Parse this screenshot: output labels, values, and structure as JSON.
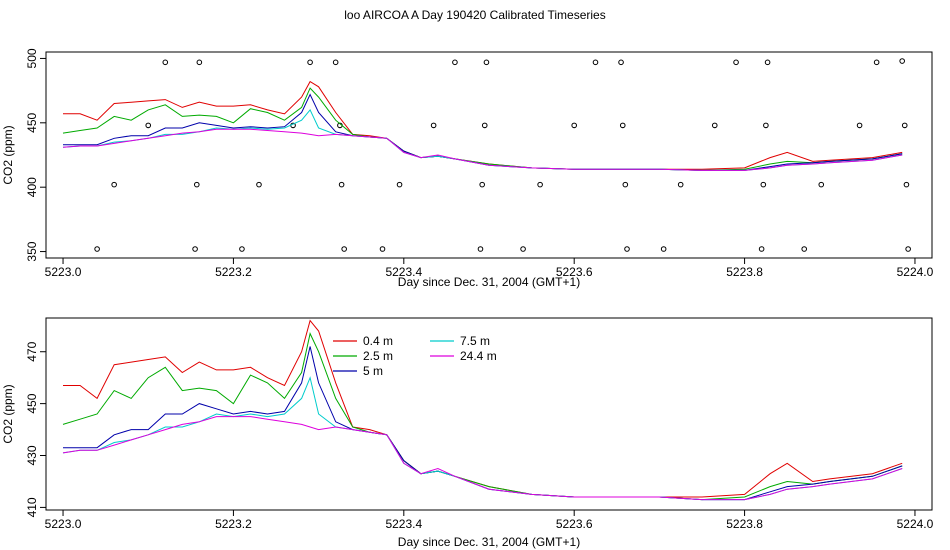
{
  "title": "loo AIRCOA A  Day 190420  Calibrated Timeseries",
  "chart_data": [
    {
      "type": "scatter",
      "title": "",
      "xlabel": "Day since Dec. 31, 2004 (GMT+1)",
      "ylabel": "CO2 (ppm)",
      "xlim": [
        5222.98,
        5224.02
      ],
      "ylim": [
        345,
        505
      ],
      "xticks": [
        "5223.0",
        "5223.2",
        "5223.4",
        "5223.6",
        "5223.8",
        "5224.0"
      ],
      "yticks": [
        "350",
        "400",
        "450",
        "500"
      ],
      "colors": {
        "0.4 m": "#e00000",
        "2.5 m": "#00aa00",
        "5 m": "#0000aa",
        "7.5 m": "#00cccc",
        "24.4 m": "#dd00dd",
        "points": "#000000"
      },
      "points": [
        {
          "x": 5223.04,
          "y": 352
        },
        {
          "x": 5223.06,
          "y": 402
        },
        {
          "x": 5223.1,
          "y": 448
        },
        {
          "x": 5223.12,
          "y": 497
        },
        {
          "x": 5223.155,
          "y": 352
        },
        {
          "x": 5223.157,
          "y": 402
        },
        {
          "x": 5223.16,
          "y": 497
        },
        {
          "x": 5223.21,
          "y": 352
        },
        {
          "x": 5223.23,
          "y": 402
        },
        {
          "x": 5223.27,
          "y": 448
        },
        {
          "x": 5223.29,
          "y": 497
        },
        {
          "x": 5223.32,
          "y": 497
        },
        {
          "x": 5223.325,
          "y": 448
        },
        {
          "x": 5223.327,
          "y": 402
        },
        {
          "x": 5223.33,
          "y": 352
        },
        {
          "x": 5223.375,
          "y": 352
        },
        {
          "x": 5223.395,
          "y": 402
        },
        {
          "x": 5223.435,
          "y": 448
        },
        {
          "x": 5223.46,
          "y": 497
        },
        {
          "x": 5223.49,
          "y": 352
        },
        {
          "x": 5223.492,
          "y": 402
        },
        {
          "x": 5223.495,
          "y": 448
        },
        {
          "x": 5223.497,
          "y": 497
        },
        {
          "x": 5223.54,
          "y": 352
        },
        {
          "x": 5223.56,
          "y": 402
        },
        {
          "x": 5223.6,
          "y": 448
        },
        {
          "x": 5223.625,
          "y": 497
        },
        {
          "x": 5223.655,
          "y": 497
        },
        {
          "x": 5223.657,
          "y": 448
        },
        {
          "x": 5223.66,
          "y": 402
        },
        {
          "x": 5223.662,
          "y": 352
        },
        {
          "x": 5223.705,
          "y": 352
        },
        {
          "x": 5223.725,
          "y": 402
        },
        {
          "x": 5223.765,
          "y": 448
        },
        {
          "x": 5223.79,
          "y": 497
        },
        {
          "x": 5223.82,
          "y": 352
        },
        {
          "x": 5223.822,
          "y": 402
        },
        {
          "x": 5223.825,
          "y": 448
        },
        {
          "x": 5223.827,
          "y": 497
        },
        {
          "x": 5223.87,
          "y": 352
        },
        {
          "x": 5223.89,
          "y": 402
        },
        {
          "x": 5223.935,
          "y": 448
        },
        {
          "x": 5223.955,
          "y": 497
        },
        {
          "x": 5223.985,
          "y": 498
        },
        {
          "x": 5223.988,
          "y": 448
        },
        {
          "x": 5223.99,
          "y": 402
        },
        {
          "x": 5223.992,
          "y": 352
        }
      ]
    },
    {
      "type": "line",
      "title": "",
      "xlabel": "Day since Dec. 31, 2004 (GMT+1)",
      "ylabel": "CO2 (ppm)",
      "xlim": [
        5222.98,
        5224.02
      ],
      "ylim": [
        409,
        483
      ],
      "xticks": [
        "5223.0",
        "5223.2",
        "5223.4",
        "5223.6",
        "5223.8",
        "5224.0"
      ],
      "yticks": [
        "410",
        "430",
        "450",
        "470"
      ],
      "legend_position": "top-center",
      "x": [
        5223.0,
        5223.02,
        5223.04,
        5223.06,
        5223.08,
        5223.1,
        5223.12,
        5223.14,
        5223.16,
        5223.18,
        5223.2,
        5223.22,
        5223.24,
        5223.26,
        5223.28,
        5223.29,
        5223.3,
        5223.32,
        5223.34,
        5223.36,
        5223.38,
        5223.4,
        5223.42,
        5223.44,
        5223.46,
        5223.5,
        5223.55,
        5223.6,
        5223.65,
        5223.7,
        5223.75,
        5223.8,
        5223.83,
        5223.85,
        5223.88,
        5223.9,
        5223.95,
        5223.985
      ],
      "series": [
        {
          "name": "0.4 m",
          "color": "#e00000",
          "values": [
            457,
            457,
            452,
            465,
            466,
            467,
            468,
            462,
            466,
            463,
            463,
            464,
            460,
            457,
            470,
            482,
            478,
            458,
            441,
            440,
            438,
            428,
            423,
            424,
            422,
            418,
            415,
            414,
            414,
            414,
            414,
            415,
            423,
            427,
            420,
            421,
            423,
            427
          ]
        },
        {
          "name": "2.5 m",
          "color": "#00aa00",
          "values": [
            442,
            444,
            446,
            455,
            452,
            460,
            464,
            455,
            456,
            455,
            450,
            461,
            458,
            452,
            462,
            477,
            470,
            452,
            441,
            439,
            438,
            428,
            423,
            424,
            422,
            418,
            415,
            414,
            414,
            414,
            413,
            414,
            418,
            420,
            419,
            420,
            422,
            426
          ]
        },
        {
          "name": "5 m",
          "color": "#0000aa",
          "values": [
            433,
            433,
            433,
            438,
            440,
            440,
            446,
            446,
            450,
            448,
            446,
            447,
            446,
            447,
            458,
            472,
            458,
            443,
            440,
            439,
            438,
            428,
            423,
            424,
            422,
            417,
            415,
            414,
            414,
            414,
            413,
            413,
            416,
            418,
            419,
            420,
            422,
            426
          ]
        },
        {
          "name": "7.5 m",
          "color": "#00cccc",
          "values": [
            431,
            432,
            432,
            435,
            436,
            438,
            441,
            441,
            443,
            446,
            445,
            446,
            445,
            446,
            452,
            460,
            446,
            441,
            440,
            439,
            438,
            427,
            423,
            424,
            422,
            417,
            415,
            414,
            414,
            414,
            413,
            413,
            415,
            417,
            418,
            419,
            421,
            425
          ]
        },
        {
          "name": "24.4 m",
          "color": "#dd00dd",
          "values": [
            431,
            432,
            432,
            434,
            436,
            438,
            440,
            442,
            443,
            445,
            445,
            445,
            444,
            443,
            442,
            441,
            440,
            441,
            440,
            439,
            438,
            427,
            423,
            425,
            422,
            417,
            415,
            414,
            414,
            414,
            413,
            413,
            415,
            417,
            418,
            419,
            421,
            425
          ]
        }
      ]
    }
  ]
}
